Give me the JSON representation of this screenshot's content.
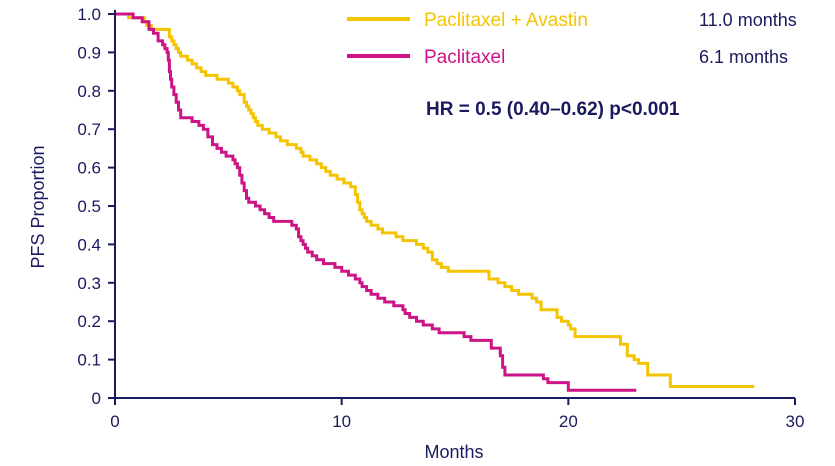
{
  "chart_data": {
    "type": "line",
    "xlabel": "Months",
    "ylabel": "PFS Proportion",
    "xlim": [
      0,
      30
    ],
    "ylim": [
      0,
      1
    ],
    "x_ticks": [
      0,
      10,
      20,
      30
    ],
    "y_ticks": [
      0,
      0.1,
      0.2,
      0.3,
      0.4,
      0.5,
      0.6,
      0.7,
      0.8,
      0.9,
      1.0
    ],
    "y_tick_labels": [
      "0",
      "0.1",
      "0.2",
      "0.3",
      "0.4",
      "0.5",
      "0.6",
      "0.7",
      "0.8",
      "0.9",
      "1.0"
    ],
    "legend_position": "top-right",
    "stat_annotation": "HR = 0.5 (0.40–0.62)  p<0.001",
    "series": [
      {
        "name": "Paclitaxel + Avastin",
        "median": "11.0 months",
        "color": "#f5c400",
        "points": [
          [
            0,
            1.0
          ],
          [
            0.3,
            1.0
          ],
          [
            0.6,
            0.99
          ],
          [
            1.0,
            0.99
          ],
          [
            1.3,
            0.98
          ],
          [
            1.4,
            0.97
          ],
          [
            1.6,
            0.96
          ],
          [
            2.2,
            0.96
          ],
          [
            2.4,
            0.94
          ],
          [
            2.5,
            0.93
          ],
          [
            2.6,
            0.92
          ],
          [
            2.7,
            0.91
          ],
          [
            2.8,
            0.9
          ],
          [
            2.9,
            0.89
          ],
          [
            3.2,
            0.88
          ],
          [
            3.4,
            0.87
          ],
          [
            3.6,
            0.86
          ],
          [
            3.8,
            0.85
          ],
          [
            4.0,
            0.84
          ],
          [
            4.5,
            0.83
          ],
          [
            5.0,
            0.82
          ],
          [
            5.2,
            0.81
          ],
          [
            5.4,
            0.8
          ],
          [
            5.5,
            0.79
          ],
          [
            5.7,
            0.77
          ],
          [
            5.8,
            0.76
          ],
          [
            5.9,
            0.75
          ],
          [
            6.0,
            0.74
          ],
          [
            6.1,
            0.73
          ],
          [
            6.2,
            0.72
          ],
          [
            6.3,
            0.71
          ],
          [
            6.5,
            0.7
          ],
          [
            6.8,
            0.69
          ],
          [
            7.1,
            0.68
          ],
          [
            7.3,
            0.67
          ],
          [
            7.6,
            0.66
          ],
          [
            8.0,
            0.65
          ],
          [
            8.2,
            0.64
          ],
          [
            8.3,
            0.63
          ],
          [
            8.6,
            0.62
          ],
          [
            8.9,
            0.61
          ],
          [
            9.1,
            0.6
          ],
          [
            9.3,
            0.59
          ],
          [
            9.5,
            0.58
          ],
          [
            9.8,
            0.57
          ],
          [
            10.1,
            0.56
          ],
          [
            10.4,
            0.55
          ],
          [
            10.6,
            0.53
          ],
          [
            10.7,
            0.51
          ],
          [
            10.8,
            0.49
          ],
          [
            10.9,
            0.48
          ],
          [
            11.0,
            0.47
          ],
          [
            11.1,
            0.46
          ],
          [
            11.3,
            0.45
          ],
          [
            11.6,
            0.44
          ],
          [
            11.8,
            0.43
          ],
          [
            12.4,
            0.42
          ],
          [
            12.7,
            0.41
          ],
          [
            13.3,
            0.4
          ],
          [
            13.6,
            0.39
          ],
          [
            13.8,
            0.38
          ],
          [
            14.0,
            0.36
          ],
          [
            14.2,
            0.35
          ],
          [
            14.4,
            0.34
          ],
          [
            14.7,
            0.33
          ],
          [
            16.3,
            0.33
          ],
          [
            16.5,
            0.31
          ],
          [
            16.9,
            0.3
          ],
          [
            17.2,
            0.29
          ],
          [
            17.5,
            0.28
          ],
          [
            17.8,
            0.27
          ],
          [
            18.2,
            0.27
          ],
          [
            18.4,
            0.26
          ],
          [
            18.6,
            0.25
          ],
          [
            18.8,
            0.23
          ],
          [
            19.1,
            0.23
          ],
          [
            19.4,
            0.23
          ],
          [
            19.5,
            0.21
          ],
          [
            19.7,
            0.2
          ],
          [
            20.0,
            0.19
          ],
          [
            20.1,
            0.18
          ],
          [
            20.3,
            0.16
          ],
          [
            22.0,
            0.16
          ],
          [
            22.3,
            0.14
          ],
          [
            22.6,
            0.11
          ],
          [
            22.9,
            0.1
          ],
          [
            23.1,
            0.09
          ],
          [
            23.5,
            0.06
          ],
          [
            24.3,
            0.06
          ],
          [
            24.5,
            0.03
          ],
          [
            28.2,
            0.03
          ]
        ]
      },
      {
        "name": "Paclitaxel",
        "median": "6.1 months",
        "color": "#cc1488",
        "points": [
          [
            0,
            1.0
          ],
          [
            0.8,
            0.99
          ],
          [
            1.2,
            0.98
          ],
          [
            1.5,
            0.96
          ],
          [
            1.7,
            0.95
          ],
          [
            1.9,
            0.93
          ],
          [
            2.1,
            0.92
          ],
          [
            2.2,
            0.91
          ],
          [
            2.3,
            0.9
          ],
          [
            2.35,
            0.88
          ],
          [
            2.4,
            0.85
          ],
          [
            2.45,
            0.83
          ],
          [
            2.5,
            0.81
          ],
          [
            2.6,
            0.79
          ],
          [
            2.7,
            0.77
          ],
          [
            2.8,
            0.75
          ],
          [
            2.9,
            0.73
          ],
          [
            3.4,
            0.72
          ],
          [
            3.7,
            0.71
          ],
          [
            3.9,
            0.7
          ],
          [
            4.1,
            0.68
          ],
          [
            4.3,
            0.66
          ],
          [
            4.5,
            0.65
          ],
          [
            4.7,
            0.64
          ],
          [
            4.9,
            0.63
          ],
          [
            5.2,
            0.62
          ],
          [
            5.3,
            0.61
          ],
          [
            5.4,
            0.6
          ],
          [
            5.5,
            0.58
          ],
          [
            5.6,
            0.56
          ],
          [
            5.7,
            0.54
          ],
          [
            5.8,
            0.52
          ],
          [
            5.9,
            0.51
          ],
          [
            6.2,
            0.5
          ],
          [
            6.4,
            0.49
          ],
          [
            6.6,
            0.48
          ],
          [
            6.8,
            0.47
          ],
          [
            7.0,
            0.46
          ],
          [
            7.6,
            0.46
          ],
          [
            7.8,
            0.45
          ],
          [
            8.0,
            0.44
          ],
          [
            8.1,
            0.42
          ],
          [
            8.2,
            0.41
          ],
          [
            8.3,
            0.4
          ],
          [
            8.4,
            0.39
          ],
          [
            8.5,
            0.38
          ],
          [
            8.7,
            0.37
          ],
          [
            8.9,
            0.36
          ],
          [
            9.2,
            0.35
          ],
          [
            9.6,
            0.35
          ],
          [
            9.7,
            0.34
          ],
          [
            10.0,
            0.33
          ],
          [
            10.3,
            0.32
          ],
          [
            10.6,
            0.31
          ],
          [
            10.8,
            0.3
          ],
          [
            10.9,
            0.29
          ],
          [
            11.1,
            0.28
          ],
          [
            11.3,
            0.27
          ],
          [
            11.6,
            0.26
          ],
          [
            11.9,
            0.25
          ],
          [
            12.3,
            0.24
          ],
          [
            12.6,
            0.24
          ],
          [
            12.7,
            0.23
          ],
          [
            12.8,
            0.22
          ],
          [
            13.0,
            0.21
          ],
          [
            13.3,
            0.2
          ],
          [
            13.6,
            0.19
          ],
          [
            14.0,
            0.18
          ],
          [
            14.1,
            0.18
          ],
          [
            14.3,
            0.17
          ],
          [
            15.4,
            0.16
          ],
          [
            15.7,
            0.15
          ],
          [
            16.0,
            0.15
          ],
          [
            16.4,
            0.15
          ],
          [
            16.6,
            0.13
          ],
          [
            16.9,
            0.13
          ],
          [
            17.0,
            0.11
          ],
          [
            17.1,
            0.08
          ],
          [
            17.2,
            0.06
          ],
          [
            18.9,
            0.05
          ],
          [
            19.1,
            0.04
          ],
          [
            19.8,
            0.04
          ],
          [
            20.0,
            0.02
          ],
          [
            23.0,
            0.02
          ]
        ]
      }
    ]
  }
}
